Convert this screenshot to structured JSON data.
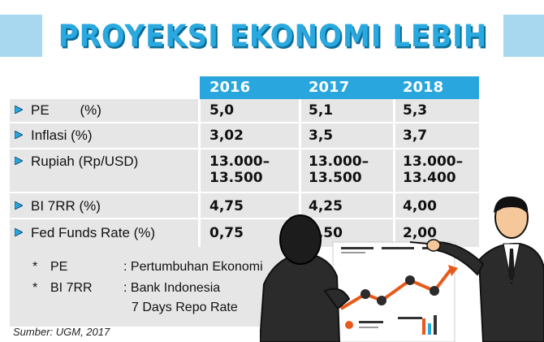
{
  "title": "PROYEKSI EKONOMI LEBIH BAIK",
  "years": [
    "2016",
    "2017",
    "2018"
  ],
  "rows": [
    {
      "label": "PE        (%)",
      "values": [
        "5,0",
        "5,1",
        "5,3"
      ]
    },
    {
      "label": "Inflasi (%)",
      "values": [
        "3,02",
        "3,5",
        "3,7"
      ]
    },
    {
      "label": "Rupiah (Rp/USD)",
      "values": [
        "13.000–\n13.500",
        "13.000–\n13.500",
        "13.000–\n13.400"
      ]
    },
    {
      "label": "BI 7RR (%)",
      "values": [
        "4,75",
        "4,25",
        "4,00"
      ]
    },
    {
      "label": "Fed Funds Rate (%)",
      "values": [
        "0,75",
        "1,50",
        "2,00"
      ]
    }
  ],
  "notes": [
    {
      "mark": "*",
      "abbr": "PE",
      "desc": ": Pertumbuhan Ekonomi"
    },
    {
      "mark": "*",
      "abbr": "BI 7RR",
      "desc": ": Bank Indonesia",
      "desc2": "7 Days Repo Rate"
    }
  ],
  "source": "Sumber: UGM, 2017",
  "colors": {
    "accent": "#29a6dd",
    "band": "#a8d8ef",
    "row": "#e6e6e6"
  }
}
